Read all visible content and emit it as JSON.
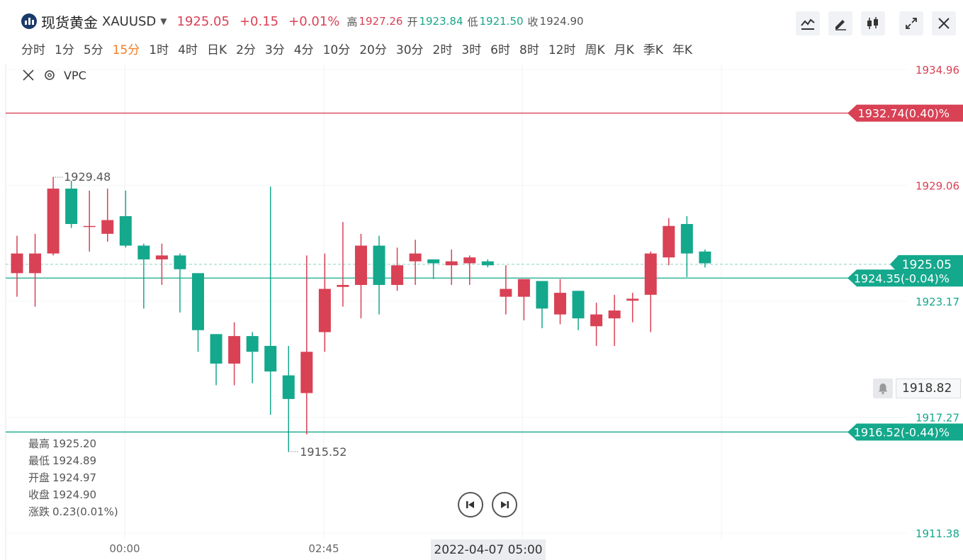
{
  "header": {
    "symbol_name": "现货黄金",
    "symbol_code": "XAUUSD",
    "price": "1925.05",
    "change": "+0.15",
    "change_pct": "+0.01%",
    "high_label": "高",
    "high": "1927.26",
    "open_label": "开",
    "open": "1923.84",
    "low_label": "低",
    "low": "1921.50",
    "close_label": "收",
    "close": "1924.90"
  },
  "toolbar": {
    "icons": [
      "line-chart-icon",
      "pen-icon",
      "candlestick-icon",
      "expand-icon",
      "close-icon"
    ]
  },
  "periods": [
    "分时",
    "1分",
    "5分",
    "15分",
    "1时",
    "4时",
    "日K",
    "2分",
    "3分",
    "4分",
    "10分",
    "20分",
    "30分",
    "2时",
    "3时",
    "6时",
    "8时",
    "12时",
    "周K",
    "月K",
    "季K",
    "年K"
  ],
  "active_period": "15分",
  "indicator": {
    "name": "VPC"
  },
  "ohlc_panel": {
    "high_label": "最高",
    "high": "1925.20",
    "low_label": "最低",
    "low": "1924.89",
    "open_label": "开盘",
    "open": "1924.97",
    "close_label": "收盘",
    "close": "1924.90",
    "change_label": "涨跌",
    "change": "0.23(0.01%)"
  },
  "alert": {
    "value": "1918.82"
  },
  "time_cursor": "2022-04-07 05:00",
  "colors": {
    "up": "#d94155",
    "down": "#14a88c",
    "accent": "#f07c23"
  },
  "chart_data": {
    "type": "candlestick",
    "ylim": [
      1911.38,
      1934.96
    ],
    "y_ticks": [
      "1934.96",
      "1929.06",
      "1923.17",
      "1917.27",
      "1911.38"
    ],
    "x_ticks": [
      "00:00",
      "02:45"
    ],
    "max_annotation": "1929.48",
    "min_annotation": "1915.52",
    "price_lines": [
      {
        "label": "1932.74(0.40)%",
        "value": 1932.74,
        "color": "#d94155"
      },
      {
        "label": "1924.35(-0.04)%",
        "value": 1924.35,
        "color": "#14a88c"
      },
      {
        "label": "1916.52(-0.44)%",
        "value": 1916.52,
        "color": "#14a88c"
      }
    ],
    "current_price": {
      "label": "1925.05",
      "value": 1925.05
    },
    "candles": [
      {
        "o": 1924.6,
        "h": 1926.5,
        "l": 1923.4,
        "c": 1925.6
      },
      {
        "o": 1924.6,
        "h": 1926.6,
        "l": 1922.9,
        "c": 1925.6
      },
      {
        "o": 1925.6,
        "h": 1929.48,
        "l": 1925.5,
        "c": 1928.9
      },
      {
        "o": 1928.9,
        "h": 1929.3,
        "l": 1926.9,
        "c": 1927.1
      },
      {
        "o": 1927.0,
        "h": 1928.8,
        "l": 1925.7,
        "c": 1927.0
      },
      {
        "o": 1926.6,
        "h": 1928.9,
        "l": 1926.2,
        "c": 1927.3
      },
      {
        "o": 1927.5,
        "h": 1928.8,
        "l": 1925.9,
        "c": 1926.0
      },
      {
        "o": 1926.0,
        "h": 1926.1,
        "l": 1922.8,
        "c": 1925.3
      },
      {
        "o": 1925.3,
        "h": 1926.1,
        "l": 1924.0,
        "c": 1925.5
      },
      {
        "o": 1925.5,
        "h": 1925.6,
        "l": 1922.6,
        "c": 1924.8
      },
      {
        "o": 1924.6,
        "h": 1924.6,
        "l": 1920.6,
        "c": 1921.7
      },
      {
        "o": 1921.5,
        "h": 1921.5,
        "l": 1918.9,
        "c": 1920.0
      },
      {
        "o": 1920.0,
        "h": 1922.1,
        "l": 1918.9,
        "c": 1921.4
      },
      {
        "o": 1921.4,
        "h": 1921.6,
        "l": 1919.0,
        "c": 1920.6
      },
      {
        "o": 1920.9,
        "h": 1929.0,
        "l": 1917.4,
        "c": 1919.6
      },
      {
        "o": 1919.4,
        "h": 1920.9,
        "l": 1915.52,
        "c": 1918.2
      },
      {
        "o": 1918.5,
        "h": 1925.5,
        "l": 1916.4,
        "c": 1920.6
      },
      {
        "o": 1921.6,
        "h": 1925.6,
        "l": 1920.6,
        "c": 1923.8
      },
      {
        "o": 1923.9,
        "h": 1927.2,
        "l": 1922.9,
        "c": 1924.0
      },
      {
        "o": 1924.0,
        "h": 1926.6,
        "l": 1922.3,
        "c": 1926.0
      },
      {
        "o": 1926.0,
        "h": 1926.5,
        "l": 1922.5,
        "c": 1924.0
      },
      {
        "o": 1924.0,
        "h": 1925.9,
        "l": 1923.7,
        "c": 1925.0
      },
      {
        "o": 1925.2,
        "h": 1926.3,
        "l": 1924.0,
        "c": 1925.6
      },
      {
        "o": 1925.3,
        "h": 1925.3,
        "l": 1924.3,
        "c": 1925.1
      },
      {
        "o": 1925.0,
        "h": 1925.8,
        "l": 1924.0,
        "c": 1925.2
      },
      {
        "o": 1925.1,
        "h": 1925.5,
        "l": 1924.0,
        "c": 1925.4
      },
      {
        "o": 1925.2,
        "h": 1925.3,
        "l": 1924.9,
        "c": 1925.0
      },
      {
        "o": 1923.4,
        "h": 1925.0,
        "l": 1922.5,
        "c": 1923.8
      },
      {
        "o": 1923.4,
        "h": 1924.2,
        "l": 1922.2,
        "c": 1924.3
      },
      {
        "o": 1924.2,
        "h": 1924.2,
        "l": 1921.8,
        "c": 1922.8
      },
      {
        "o": 1922.5,
        "h": 1924.3,
        "l": 1922.0,
        "c": 1923.6
      },
      {
        "o": 1923.7,
        "h": 1923.7,
        "l": 1921.7,
        "c": 1922.3
      },
      {
        "o": 1921.9,
        "h": 1923.1,
        "l": 1920.9,
        "c": 1922.5
      },
      {
        "o": 1922.3,
        "h": 1923.5,
        "l": 1920.9,
        "c": 1922.7
      },
      {
        "o": 1923.2,
        "h": 1923.6,
        "l": 1922.1,
        "c": 1923.3
      },
      {
        "o": 1923.5,
        "h": 1925.7,
        "l": 1921.6,
        "c": 1925.6
      },
      {
        "o": 1925.4,
        "h": 1927.4,
        "l": 1925.0,
        "c": 1927.0
      },
      {
        "o": 1927.1,
        "h": 1927.5,
        "l": 1924.4,
        "c": 1925.6
      },
      {
        "o": 1925.7,
        "h": 1925.8,
        "l": 1924.89,
        "c": 1925.1
      }
    ]
  }
}
